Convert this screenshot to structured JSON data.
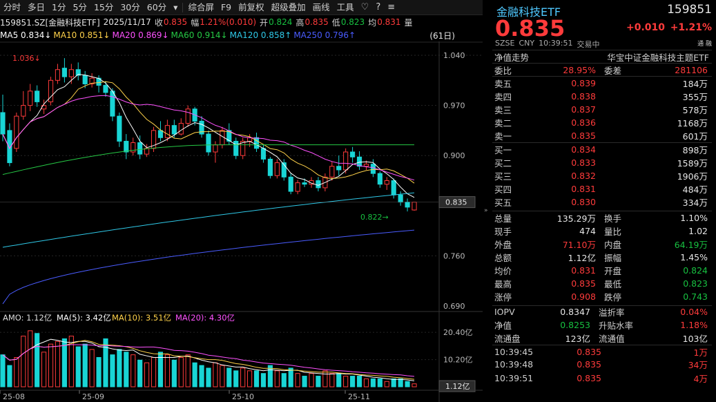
{
  "toolbar": {
    "items": [
      "分时",
      "多日",
      "1分",
      "5分",
      "15分",
      "30分",
      "60分",
      "▾",
      "综合屏",
      "F9",
      "前复权",
      "超级叠加",
      "画线",
      "工具"
    ],
    "icons": [
      "heart-icon",
      "help-icon",
      "menu-icon"
    ]
  },
  "info": {
    "code": "159851.SZ[金融科技ETF]",
    "date": "2025/11/17",
    "close_label": "收",
    "close": "0.835",
    "amp_label": "幅",
    "amp": "1.21%(0.010)",
    "open_label": "开",
    "open": "0.824",
    "high_label": "高",
    "high": "0.835",
    "low_label": "低",
    "low": "0.823",
    "avg_label": "均",
    "avg": "0.831",
    "vol_label": "量"
  },
  "ma": {
    "ma5": "MA5 0.834↓",
    "ma10": "MA10 0.851↓",
    "ma20": "MA20 0.869↓",
    "ma60": "MA60 0.914↓",
    "ma120": "MA120 0.858↑",
    "ma250": "MA250 0.796↑",
    "period": "(61日)"
  },
  "colors": {
    "up": "#ff3b3b",
    "down": "#19d5d5",
    "ma5": "#ffffff",
    "ma10": "#ffd24a",
    "ma20": "#ff52ff",
    "ma60": "#26c945",
    "ma120": "#2fc9e8",
    "ma250": "#4a5cff"
  },
  "price_axis": {
    "labels": [
      "1.040",
      "0.970",
      "0.900",
      "0.835",
      "0.760",
      "0.690"
    ],
    "current": "0.835",
    "max_note": "1.036",
    "min_note": "0.822"
  },
  "volume": {
    "title": "AMO: 1.12亿",
    "ma5": "MA(5): 3.42亿",
    "ma10": "MA(10): 3.51亿",
    "ma20": "MA(20): 4.30亿",
    "axis": [
      "20.40亿",
      "10.20亿",
      "1.12亿"
    ]
  },
  "dates": [
    "25-08",
    "25-09",
    "25-10",
    "25-11"
  ],
  "chart_data": {
    "type": "candlestick",
    "ylim": [
      0.69,
      1.04
    ],
    "candles": [
      [
        0.96,
        0.93,
        0.985,
        0.92
      ],
      [
        0.935,
        0.89,
        0.945,
        0.885
      ],
      [
        0.91,
        0.955,
        0.96,
        0.905
      ],
      [
        0.955,
        0.97,
        0.99,
        0.95
      ],
      [
        0.97,
        0.99,
        1.0,
        0.962
      ],
      [
        0.99,
        0.975,
        0.998,
        0.968
      ],
      [
        0.965,
        0.97,
        0.978,
        0.958
      ],
      [
        0.975,
        1.005,
        1.01,
        0.97
      ],
      [
        1.005,
        1.02,
        1.028,
        1.0
      ],
      [
        1.022,
        1.01,
        1.036,
        1.002
      ],
      [
        1.01,
        1.02,
        1.028,
        1.0
      ],
      [
        1.02,
        1.012,
        1.03,
        1.005
      ],
      [
        1.012,
        1.0,
        1.018,
        0.994
      ],
      [
        1.0,
        1.008,
        1.015,
        0.995
      ],
      [
        1.008,
        0.998,
        1.012,
        0.988
      ],
      [
        0.998,
        0.988,
        1.004,
        0.982
      ],
      [
        0.99,
        0.955,
        0.994,
        0.948
      ],
      [
        0.955,
        0.92,
        0.96,
        0.912
      ],
      [
        0.92,
        0.905,
        0.93,
        0.895
      ],
      [
        0.905,
        0.918,
        0.925,
        0.9
      ],
      [
        0.918,
        0.902,
        0.928,
        0.895
      ],
      [
        0.902,
        0.91,
        0.916,
        0.898
      ],
      [
        0.91,
        0.935,
        0.94,
        0.905
      ],
      [
        0.935,
        0.925,
        0.948,
        0.92
      ],
      [
        0.925,
        0.942,
        0.95,
        0.92
      ],
      [
        0.942,
        0.93,
        0.95,
        0.925
      ],
      [
        0.93,
        0.945,
        0.952,
        0.928
      ],
      [
        0.945,
        0.965,
        0.97,
        0.94
      ],
      [
        0.965,
        0.948,
        0.968,
        0.942
      ],
      [
        0.948,
        0.93,
        0.955,
        0.925
      ],
      [
        0.93,
        0.905,
        0.935,
        0.9
      ],
      [
        0.905,
        0.915,
        0.92,
        0.89
      ],
      [
        0.915,
        0.935,
        0.94,
        0.91
      ],
      [
        0.935,
        0.92,
        0.945,
        0.915
      ],
      [
        0.92,
        0.9,
        0.925,
        0.895
      ],
      [
        0.9,
        0.92,
        0.925,
        0.895
      ],
      [
        0.92,
        0.925,
        0.93,
        0.912
      ],
      [
        0.925,
        0.91,
        0.932,
        0.905
      ],
      [
        0.91,
        0.895,
        0.915,
        0.89
      ],
      [
        0.895,
        0.872,
        0.898,
        0.868
      ],
      [
        0.872,
        0.89,
        0.895,
        0.868
      ],
      [
        0.89,
        0.87,
        0.895,
        0.865
      ],
      [
        0.87,
        0.85,
        0.875,
        0.846
      ],
      [
        0.85,
        0.862,
        0.866,
        0.846
      ],
      [
        0.862,
        0.86,
        0.868,
        0.856
      ],
      [
        0.86,
        0.865,
        0.87,
        0.855
      ],
      [
        0.865,
        0.855,
        0.87,
        0.85
      ],
      [
        0.855,
        0.87,
        0.875,
        0.85
      ],
      [
        0.87,
        0.885,
        0.892,
        0.865
      ],
      [
        0.885,
        0.88,
        0.9,
        0.872
      ],
      [
        0.88,
        0.905,
        0.91,
        0.875
      ],
      [
        0.905,
        0.898,
        0.912,
        0.89
      ],
      [
        0.898,
        0.885,
        0.906,
        0.88
      ],
      [
        0.885,
        0.888,
        0.893,
        0.88
      ],
      [
        0.888,
        0.875,
        0.895,
        0.87
      ],
      [
        0.875,
        0.86,
        0.878,
        0.855
      ],
      [
        0.86,
        0.865,
        0.87,
        0.852
      ],
      [
        0.865,
        0.845,
        0.868,
        0.84
      ],
      [
        0.845,
        0.835,
        0.85,
        0.83
      ],
      [
        0.835,
        0.828,
        0.84,
        0.822
      ],
      [
        0.824,
        0.835,
        0.835,
        0.823
      ]
    ],
    "volumes": [
      12,
      8,
      11,
      19,
      21,
      20,
      13,
      16,
      17,
      18,
      19,
      15,
      16,
      14,
      11,
      18,
      12,
      14,
      13,
      12,
      10,
      9,
      11,
      13,
      12,
      10,
      11,
      12,
      9,
      8,
      7,
      9,
      8,
      7,
      6,
      7,
      6,
      6,
      5,
      8,
      6,
      5,
      7,
      5,
      4,
      5,
      4,
      6,
      5,
      5,
      4,
      4,
      4,
      3,
      3,
      3,
      2,
      3,
      3,
      2,
      1.12
    ]
  },
  "quote": {
    "name": "金融科技ETF",
    "code": "159851",
    "price": "0.835",
    "change": "+0.010",
    "change_pct": "+1.21%",
    "market": "SZSE",
    "currency": "CNY",
    "time": "10:39:51",
    "status": "交易中"
  },
  "nav_row": {
    "left": "净值走势",
    "right": "华宝中证金融科技主题ETF"
  },
  "weibi": {
    "l1": "委比",
    "v1": "28.95%",
    "l2": "委差",
    "v2": "281106"
  },
  "asks": [
    {
      "label": "卖五",
      "price": "0.839",
      "vol": "184万"
    },
    {
      "label": "卖四",
      "price": "0.838",
      "vol": "355万"
    },
    {
      "label": "卖三",
      "price": "0.837",
      "vol": "578万"
    },
    {
      "label": "卖二",
      "price": "0.836",
      "vol": "1168万"
    },
    {
      "label": "卖一",
      "price": "0.835",
      "vol": "601万"
    }
  ],
  "bids": [
    {
      "label": "买一",
      "price": "0.834",
      "vol": "898万"
    },
    {
      "label": "买二",
      "price": "0.833",
      "vol": "1589万"
    },
    {
      "label": "买三",
      "price": "0.832",
      "vol": "1906万"
    },
    {
      "label": "买四",
      "price": "0.831",
      "vol": "484万"
    },
    {
      "label": "买五",
      "price": "0.830",
      "vol": "334万"
    }
  ],
  "stats": [
    {
      "l1": "总量",
      "v1": "135.29万",
      "c1": "w",
      "l2": "换手",
      "v2": "1.10%",
      "c2": "w"
    },
    {
      "l1": "现手",
      "v1": "474",
      "c1": "w",
      "l2": "量比",
      "v2": "1.02",
      "c2": "w"
    },
    {
      "l1": "外盘",
      "v1": "71.10万",
      "c1": "r",
      "l2": "内盘",
      "v2": "64.19万",
      "c2": "g"
    },
    {
      "l1": "总额",
      "v1": "1.12亿",
      "c1": "w",
      "l2": "振幅",
      "v2": "1.45%",
      "c2": "w"
    },
    {
      "l1": "均价",
      "v1": "0.831",
      "c1": "r",
      "l2": "开盘",
      "v2": "0.824",
      "c2": "g"
    },
    {
      "l1": "最高",
      "v1": "0.835",
      "c1": "r",
      "l2": "最低",
      "v2": "0.823",
      "c2": "g"
    },
    {
      "l1": "涨停",
      "v1": "0.908",
      "c1": "r",
      "l2": "跌停",
      "v2": "0.743",
      "c2": "g"
    }
  ],
  "iopv": [
    {
      "l1": "IOPV",
      "v1": "0.8347",
      "c1": "w",
      "l2": "溢折率",
      "v2": "0.04%",
      "c2": "r"
    },
    {
      "l1": "净值",
      "v1": "0.8253",
      "c1": "g",
      "l2": "升贴水率",
      "v2": "1.18%",
      "c2": "r"
    },
    {
      "l1": "流通盘",
      "v1": "123亿",
      "c1": "w",
      "l2": "流通值",
      "v2": "103亿",
      "c2": "w"
    }
  ],
  "ticks": [
    {
      "time": "10:39:45",
      "price": "0.835",
      "vol": "1万"
    },
    {
      "time": "10:39:48",
      "price": "0.835",
      "vol": "34万"
    },
    {
      "time": "10:39:51",
      "price": "0.835",
      "vol": "4万"
    }
  ],
  "badge": "通 融"
}
